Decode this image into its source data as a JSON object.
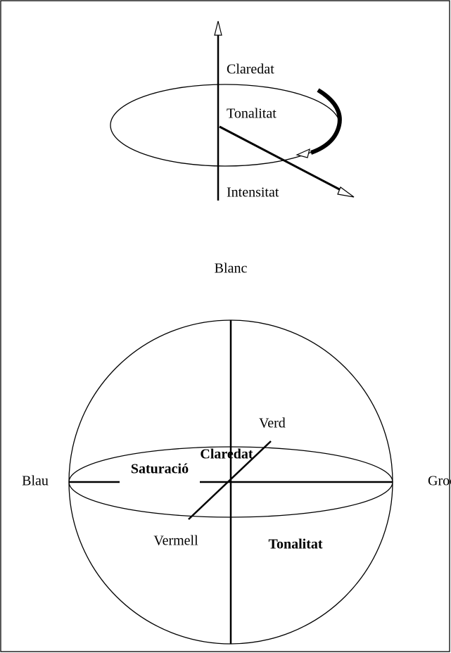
{
  "top": {
    "labels": [
      "Claredat",
      "Tonalitat",
      "Intensitat"
    ]
  },
  "bottom": {
    "top": "Blanc",
    "vertical": "Claredat",
    "back": "Verd",
    "left": "Blau",
    "radius": "Saturació",
    "right": "Groc",
    "front": "Vermell",
    "angle": "Tonalitat"
  }
}
